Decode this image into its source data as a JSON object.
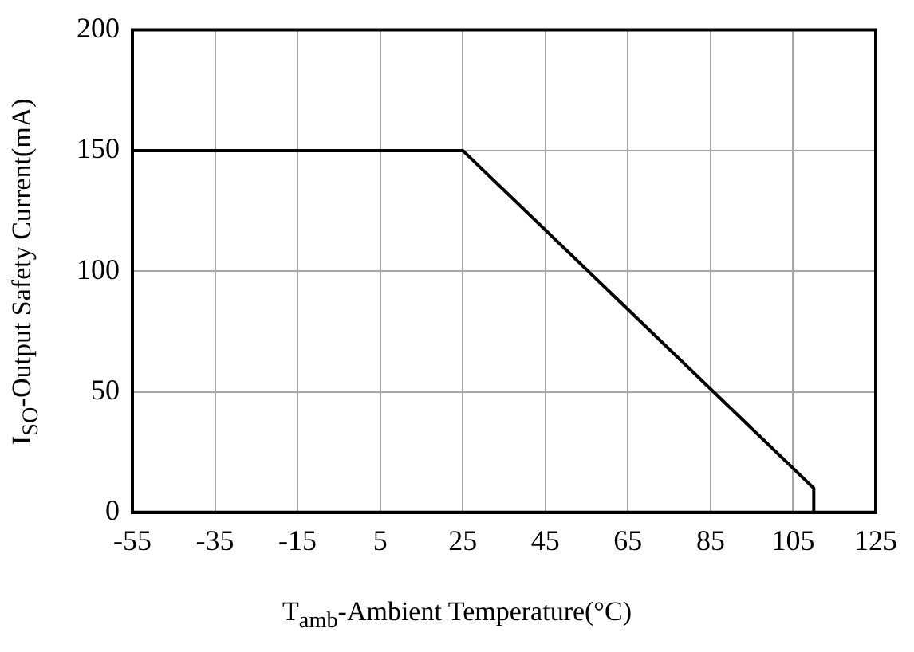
{
  "chart_data": {
    "type": "line",
    "xlabel": "T$_{amb}$-Ambient Temperature(°C)",
    "ylabel": "I$_{SO}$-Output Safety Current(mA)",
    "series": [
      {
        "color": "#000000",
        "x": [
          -55,
          25,
          110,
          110
        ],
        "values": [
          150,
          150,
          10,
          0
        ]
      }
    ],
    "xlim": [
      -55,
      125
    ],
    "xticks": [
      -55,
      -35,
      -15,
      5,
      25,
      45,
      65,
      85,
      105,
      125
    ],
    "ylim": [
      0,
      200
    ],
    "yticks": [
      0,
      50,
      100,
      150,
      200
    ],
    "grid": true,
    "legend": false,
    "marker": "none",
    "line_style": "solid"
  }
}
